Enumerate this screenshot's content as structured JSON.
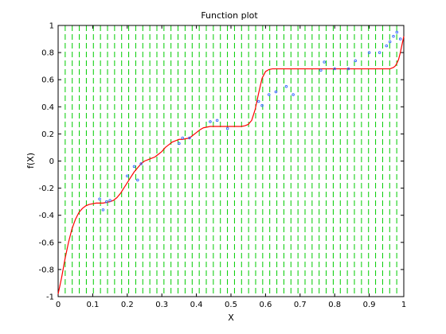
{
  "chart_data": {
    "type": "line",
    "title": "Function plot",
    "xlabel": "X",
    "ylabel": "f(X)",
    "xlim": [
      0,
      1
    ],
    "ylim": [
      -1,
      1
    ],
    "x_ticks": [
      0,
      0.1,
      0.2,
      0.3,
      0.4,
      0.5,
      0.6,
      0.7,
      0.8,
      0.9,
      1
    ],
    "x_tick_labels": [
      "0",
      "0.1",
      "0.2",
      "0.3",
      "0.4",
      "0.5",
      "0.6",
      "0.7",
      "0.8",
      "0.9",
      "1"
    ],
    "y_ticks": [
      -1,
      -0.8,
      -0.6,
      -0.4,
      -0.2,
      0,
      0.2,
      0.4,
      0.6,
      0.8,
      1
    ],
    "y_tick_labels": [
      "-1",
      "-0.8",
      "-0.6",
      "-0.4",
      "-0.2",
      "0",
      "0.2",
      "0.4",
      "0.6",
      "0.8",
      "1"
    ],
    "grid": false,
    "vertical_lines": {
      "color": "#00cc00",
      "style": "dashed",
      "x": [
        0.0204,
        0.0408,
        0.0612,
        0.0816,
        0.102,
        0.1224,
        0.1429,
        0.1633,
        0.1837,
        0.2041,
        0.2245,
        0.2449,
        0.2653,
        0.2857,
        0.3061,
        0.3265,
        0.3469,
        0.3673,
        0.3878,
        0.4082,
        0.4286,
        0.449,
        0.4694,
        0.4898,
        0.5102,
        0.5306,
        0.551,
        0.5714,
        0.5918,
        0.6122,
        0.6327,
        0.6531,
        0.6735,
        0.6939,
        0.7143,
        0.7347,
        0.7551,
        0.7755,
        0.7959,
        0.8163,
        0.8367,
        0.8571,
        0.8776,
        0.898,
        0.9184,
        0.9388,
        0.9592,
        0.9796
      ]
    },
    "series": [
      {
        "color": "#ff0000",
        "style": "line",
        "x": [
          0,
          0.01,
          0.02,
          0.03,
          0.04,
          0.05,
          0.06,
          0.07,
          0.08,
          0.09,
          0.1,
          0.11,
          0.12,
          0.13,
          0.14,
          0.15,
          0.16,
          0.17,
          0.18,
          0.19,
          0.2,
          0.21,
          0.22,
          0.23,
          0.24,
          0.25,
          0.26,
          0.27,
          0.28,
          0.29,
          0.3,
          0.31,
          0.32,
          0.33,
          0.34,
          0.35,
          0.36,
          0.37,
          0.38,
          0.39,
          0.4,
          0.41,
          0.42,
          0.43,
          0.44,
          0.45,
          0.46,
          0.47,
          0.48,
          0.49,
          0.5,
          0.51,
          0.52,
          0.53,
          0.54,
          0.55,
          0.56,
          0.57,
          0.58,
          0.59,
          0.6,
          0.61,
          0.62,
          0.63,
          0.64,
          0.65,
          0.66,
          0.67,
          0.68,
          0.69,
          0.7,
          0.71,
          0.72,
          0.73,
          0.74,
          0.75,
          0.76,
          0.77,
          0.78,
          0.79,
          0.8,
          0.81,
          0.82,
          0.83,
          0.84,
          0.85,
          0.86,
          0.87,
          0.88,
          0.89,
          0.9,
          0.91,
          0.92,
          0.93,
          0.94,
          0.95,
          0.96,
          0.97,
          0.975,
          0.98,
          0.985,
          0.99,
          0.995,
          1.0
        ],
        "y": [
          -0.98,
          -0.86,
          -0.72,
          -0.6,
          -0.5,
          -0.43,
          -0.38,
          -0.35,
          -0.33,
          -0.32,
          -0.315,
          -0.31,
          -0.31,
          -0.31,
          -0.305,
          -0.3,
          -0.29,
          -0.27,
          -0.24,
          -0.2,
          -0.16,
          -0.12,
          -0.08,
          -0.05,
          -0.02,
          0.0,
          0.01,
          0.02,
          0.03,
          0.05,
          0.07,
          0.1,
          0.12,
          0.14,
          0.15,
          0.16,
          0.16,
          0.165,
          0.17,
          0.19,
          0.21,
          0.23,
          0.245,
          0.25,
          0.255,
          0.255,
          0.255,
          0.255,
          0.255,
          0.255,
          0.255,
          0.255,
          0.255,
          0.255,
          0.26,
          0.27,
          0.3,
          0.38,
          0.5,
          0.61,
          0.66,
          0.675,
          0.68,
          0.68,
          0.68,
          0.68,
          0.68,
          0.68,
          0.68,
          0.68,
          0.68,
          0.68,
          0.68,
          0.68,
          0.68,
          0.68,
          0.68,
          0.68,
          0.68,
          0.68,
          0.68,
          0.68,
          0.68,
          0.68,
          0.68,
          0.68,
          0.68,
          0.68,
          0.68,
          0.68,
          0.68,
          0.68,
          0.68,
          0.68,
          0.68,
          0.68,
          0.68,
          0.69,
          0.7,
          0.72,
          0.75,
          0.8,
          0.86,
          0.92
        ]
      },
      {
        "color": "#3366ff",
        "style": "scatter",
        "x": [
          0.12,
          0.13,
          0.14,
          0.15,
          0.2,
          0.22,
          0.23,
          0.24,
          0.35,
          0.36,
          0.38,
          0.44,
          0.46,
          0.49,
          0.58,
          0.59,
          0.61,
          0.63,
          0.66,
          0.68,
          0.76,
          0.77,
          0.8,
          0.84,
          0.86,
          0.9,
          0.93,
          0.95,
          0.96,
          0.97,
          0.98,
          0.99
        ],
        "y": [
          -0.28,
          -0.36,
          -0.3,
          -0.29,
          -0.11,
          -0.04,
          -0.14,
          -0.02,
          0.13,
          0.17,
          0.17,
          0.29,
          0.3,
          0.24,
          0.44,
          0.41,
          0.49,
          0.51,
          0.55,
          0.49,
          0.67,
          0.73,
          0.68,
          0.68,
          0.74,
          0.8,
          0.8,
          0.85,
          0.88,
          0.92,
          0.95,
          0.9
        ]
      }
    ]
  }
}
